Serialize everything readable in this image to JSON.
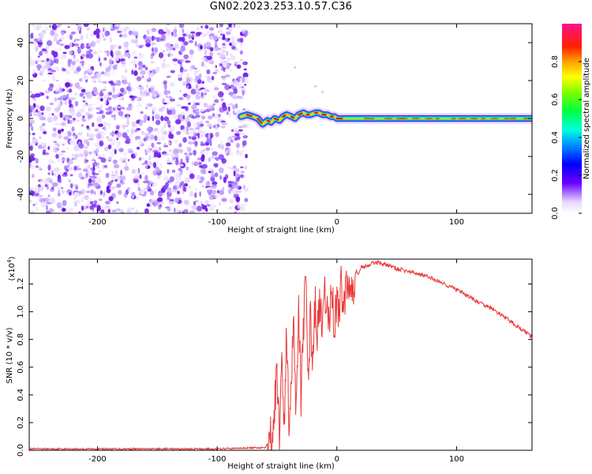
{
  "title": "GN02.2023.253.10.57.C36",
  "chart_data": [
    {
      "type": "heatmap",
      "title": "GN02.2023.253.10.57.C36",
      "xlabel": "Height of straight line (km)",
      "ylabel": "Frequency (Hz)",
      "xlim": [
        -257,
        163
      ],
      "ylim": [
        -50,
        50
      ],
      "x_ticks": [
        -200,
        -100,
        0,
        100
      ],
      "x_tick_labels": [
        "-200",
        "-100",
        "0",
        "100"
      ],
      "y_ticks": [
        -40,
        -20,
        0,
        20,
        40
      ],
      "y_tick_labels": [
        "-40",
        "-20",
        "0",
        "20",
        "40"
      ],
      "noise_region_x": [
        -257,
        -78
      ],
      "signal_trace": {
        "x": [
          -80,
          -75,
          -70,
          -66,
          -62,
          -58,
          -55,
          -52,
          -48,
          -45,
          -42,
          -38,
          -35,
          -32,
          -28,
          -25,
          -22,
          -18,
          -15,
          -12,
          -8,
          -5,
          -2,
          0,
          5,
          10,
          20,
          40,
          60,
          80,
          100,
          120,
          140,
          163
        ],
        "y": [
          1,
          2,
          1,
          0,
          -3,
          -1,
          -2,
          0,
          -1,
          1,
          2,
          1,
          0,
          2,
          3,
          2,
          2,
          3,
          3,
          2,
          2,
          1,
          1,
          0,
          0,
          0,
          0,
          0,
          0,
          0,
          0,
          0,
          0,
          0
        ]
      },
      "colorbar": {
        "label": "Normalized spectral amplitude",
        "range": [
          0.0,
          1.0
        ],
        "ticks": [
          0.0,
          0.2,
          0.4,
          0.6,
          0.8
        ],
        "tick_labels": [
          "0.0",
          "0.2",
          "0.4",
          "0.6",
          "0.8"
        ]
      }
    },
    {
      "type": "line",
      "xlabel": "Height of straight line (km)",
      "ylabel": "SNR (10 * v/v)",
      "scale_label": "(x10",
      "scale_exponent": "4",
      "scale_suffix": ")",
      "xlim": [
        -257,
        163
      ],
      "ylim": [
        0,
        1.38
      ],
      "x_ticks": [
        -200,
        -100,
        0,
        100
      ],
      "x_tick_labels": [
        "-200",
        "-100",
        "0",
        "100"
      ],
      "y_ticks": [
        0.0,
        0.2,
        0.4,
        0.6,
        0.8,
        1.0,
        1.2
      ],
      "y_tick_labels": [
        "0.0",
        "0.2",
        "0.4",
        "0.6",
        "0.8",
        "1.0",
        "1.2"
      ],
      "color": "#e83a3a",
      "series": [
        {
          "name": "SNR",
          "x": [
            -257,
            -200,
            -150,
            -100,
            -60,
            -55,
            -52,
            -50,
            -48,
            -46,
            -44,
            -42,
            -40,
            -38,
            -36,
            -34,
            -32,
            -30,
            -28,
            -26,
            -24,
            -22,
            -20,
            -18,
            -16,
            -14,
            -12,
            -10,
            -8,
            -6,
            -4,
            -2,
            0,
            2,
            4,
            6,
            8,
            10,
            12,
            14,
            16,
            18,
            20,
            25,
            30,
            35,
            40,
            45,
            50,
            60,
            70,
            80,
            90,
            100,
            110,
            120,
            130,
            140,
            150,
            163
          ],
          "y": [
            0.01,
            0.01,
            0.01,
            0.01,
            0.02,
            0.1,
            0.3,
            0.55,
            0.1,
            0.7,
            0.2,
            0.85,
            0.15,
            0.6,
            0.95,
            0.25,
            1.1,
            0.4,
            0.8,
            1.25,
            0.55,
            0.95,
            0.7,
            1.05,
            0.85,
            1.05,
            0.8,
            1.15,
            0.95,
            1.0,
            1.15,
            0.9,
            1.1,
            1.0,
            1.2,
            1.05,
            1.22,
            1.15,
            1.28,
            1.2,
            1.3,
            1.27,
            1.32,
            1.33,
            1.35,
            1.36,
            1.34,
            1.33,
            1.31,
            1.29,
            1.27,
            1.24,
            1.2,
            1.16,
            1.11,
            1.06,
            1.02,
            0.96,
            0.9,
            0.82
          ]
        }
      ]
    }
  ]
}
